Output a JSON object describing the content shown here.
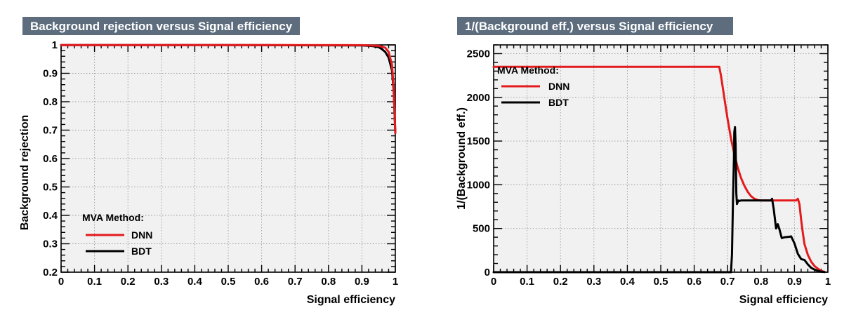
{
  "chart_data": [
    {
      "type": "line",
      "title": "Background rejection versus Signal efficiency",
      "xlabel": "Signal efficiency",
      "ylabel": "Background rejection",
      "xlim": [
        0,
        1
      ],
      "ylim": [
        0.2,
        1.0
      ],
      "xticks": [
        "0",
        "0.1",
        "0.2",
        "0.3",
        "0.4",
        "0.5",
        "0.6",
        "0.7",
        "0.8",
        "0.9",
        "1"
      ],
      "yticks": [
        "0.2",
        "0.3",
        "0.4",
        "0.5",
        "0.6",
        "0.7",
        "0.8",
        "0.9",
        "1"
      ],
      "grid": true,
      "legend_title": "MVA Method:",
      "legend_position": "bottom-left",
      "series": [
        {
          "name": "DNN",
          "color": "#e41a1c",
          "x": [
            0,
            0.5,
            0.9,
            0.95,
            0.97,
            0.98,
            0.99,
            0.995,
            1.0
          ],
          "y": [
            0.9996,
            0.9996,
            0.999,
            0.997,
            0.99,
            0.975,
            0.93,
            0.85,
            0.69
          ]
        },
        {
          "name": "BDT",
          "color": "#000000",
          "x": [
            0,
            0.5,
            0.9,
            0.93,
            0.95,
            0.96,
            0.97,
            0.98,
            0.99,
            0.995,
            1.0
          ],
          "y": [
            0.9996,
            0.9996,
            0.998,
            0.996,
            0.992,
            0.985,
            0.975,
            0.955,
            0.91,
            0.84,
            0.69
          ]
        }
      ]
    },
    {
      "type": "line",
      "title": "1/(Background eff.) versus Signal efficiency",
      "xlabel": "Signal efficiency",
      "ylabel": "1/(Background eff.)",
      "xlim": [
        0,
        1
      ],
      "ylim": [
        0,
        2600
      ],
      "xticks": [
        "0",
        "0.1",
        "0.2",
        "0.3",
        "0.4",
        "0.5",
        "0.6",
        "0.7",
        "0.8",
        "0.9",
        "1"
      ],
      "yticks": [
        "0",
        "500",
        "1000",
        "1500",
        "2000",
        "2500"
      ],
      "ytick_values": [
        0,
        500,
        1000,
        1500,
        2000,
        2500
      ],
      "grid": true,
      "legend_title": "MVA Method:",
      "legend_position": "top-left",
      "series": [
        {
          "name": "DNN",
          "color": "#e41a1c",
          "x": [
            0,
            0.67,
            0.675,
            0.68,
            0.69,
            0.7,
            0.71,
            0.72,
            0.73,
            0.74,
            0.75,
            0.76,
            0.77,
            0.78,
            0.79,
            0.8,
            0.85,
            0.9,
            0.905,
            0.91,
            0.915,
            0.92,
            0.925,
            0.93,
            0.94,
            0.95,
            0.96,
            0.97,
            0.98,
            0.99
          ],
          "y": [
            2350,
            2350,
            2350,
            2250,
            2000,
            1750,
            1530,
            1350,
            1200,
            1080,
            990,
            920,
            870,
            840,
            825,
            820,
            820,
            820,
            820,
            840,
            780,
            600,
            450,
            320,
            200,
            120,
            70,
            40,
            15,
            3
          ]
        },
        {
          "name": "BDT",
          "color": "#000000",
          "x": [
            0,
            0.71,
            0.713,
            0.716,
            0.719,
            0.72,
            0.722,
            0.724,
            0.726,
            0.728,
            0.73,
            0.732,
            0.735,
            0.74,
            0.83,
            0.833,
            0.838,
            0.845,
            0.85,
            0.855,
            0.862,
            0.87,
            0.885,
            0.89,
            0.9,
            0.91,
            0.92,
            0.93,
            0.94,
            0.95,
            0.96,
            0.97,
            0.98,
            0.99
          ],
          "y": [
            0,
            0,
            200,
            800,
            1300,
            1600,
            1660,
            1450,
            900,
            780,
            800,
            820,
            815,
            820,
            820,
            840,
            720,
            500,
            550,
            490,
            390,
            400,
            405,
            410,
            330,
            210,
            150,
            140,
            90,
            50,
            30,
            15,
            6,
            2
          ]
        }
      ]
    }
  ]
}
